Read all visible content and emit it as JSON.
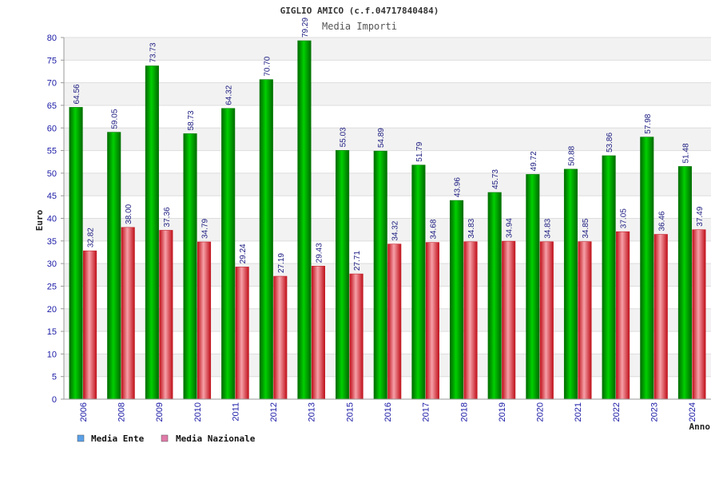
{
  "chart_data": {
    "type": "bar",
    "title": "GIGLIO AMICO (c.f.04717840484)",
    "subtitle": "Media Importi",
    "ylabel": "Euro",
    "xlabel": "Anno",
    "ylim": [
      0,
      80
    ],
    "yticks": [
      0,
      5,
      10,
      15,
      20,
      25,
      30,
      35,
      40,
      45,
      50,
      55,
      60,
      65,
      70,
      75,
      80
    ],
    "grid": true,
    "legend_position": "bottom-left",
    "categories": [
      "2006",
      "2008",
      "2009",
      "2010",
      "2011",
      "2012",
      "2013",
      "2015",
      "2016",
      "2017",
      "2018",
      "2019",
      "2020",
      "2021",
      "2022",
      "2023",
      "2024"
    ],
    "series": [
      {
        "name": "Media Ente",
        "color": "#00b000",
        "legend_color": "#5aa0e8",
        "values": [
          64.56,
          59.05,
          73.73,
          58.73,
          64.32,
          70.7,
          79.29,
          55.03,
          54.89,
          51.79,
          43.96,
          45.73,
          49.72,
          50.88,
          53.86,
          57.98,
          51.48
        ],
        "labels": [
          "64.56",
          "59.05",
          "73.73",
          "58.73",
          "64.32",
          "70.70",
          "79.29",
          "55.03",
          "54.89",
          "51.79",
          "43.96",
          "45.73",
          "49.72",
          "50.88",
          "53.86",
          "57.98",
          "51.48"
        ]
      },
      {
        "name": "Media Nazionale",
        "color": "#e8303a",
        "legend_color": "#e07aa8",
        "values": [
          32.82,
          38.0,
          37.36,
          34.79,
          29.24,
          27.19,
          29.43,
          27.71,
          34.32,
          34.68,
          34.83,
          34.94,
          34.83,
          34.85,
          37.05,
          36.46,
          37.49
        ],
        "labels": [
          "32.82",
          "38.00",
          "37.36",
          "34.79",
          "29.24",
          "27.19",
          "29.43",
          "27.71",
          "34.32",
          "34.68",
          "34.83",
          "34.94",
          "34.83",
          "34.85",
          "37.05",
          "36.46",
          "37.49"
        ]
      }
    ]
  }
}
